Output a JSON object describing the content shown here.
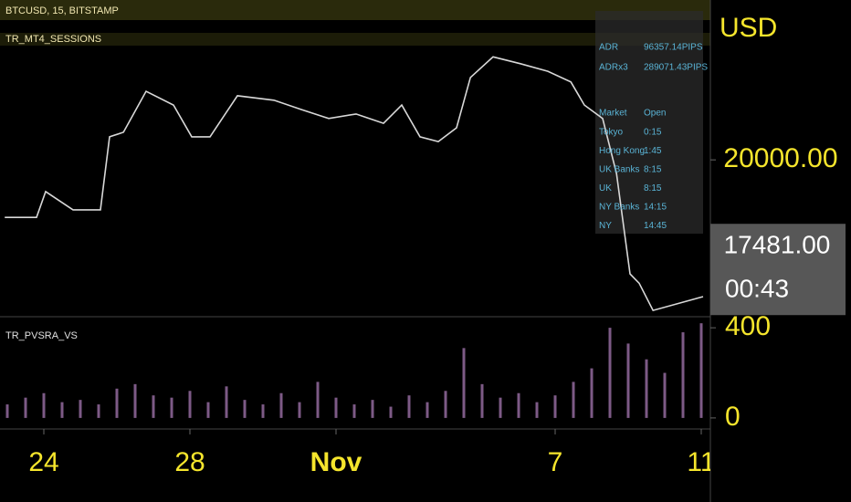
{
  "chart_data": [
    {
      "type": "line",
      "title": "BTCUSD, 15, BITSTAMP",
      "subtitle": "TR_MT4_SESSIONS",
      "y_axis_label": "USD",
      "x": [
        295.93,
        296.8,
        297.05,
        297.8,
        298.55,
        298.8,
        299.18,
        299.8,
        300.55,
        301.05,
        301.55,
        302.3,
        303.3,
        304.05,
        304.8,
        305.55,
        306.3,
        306.8,
        307.3,
        307.8,
        308.3,
        308.68,
        309.3,
        310.05,
        310.8,
        311.43,
        311.8,
        312.3,
        312.68,
        313.05,
        313.3,
        313.68,
        315.05
      ],
      "series": [
        {
          "name": "BTCUSD",
          "color": "#d8d8d8",
          "values": [
            18330,
            18330,
            19080,
            18550,
            18550,
            20670,
            20800,
            21990,
            21590,
            20670,
            20670,
            21860,
            21730,
            21460,
            21200,
            21330,
            21060,
            21590,
            20670,
            20530,
            20930,
            22390,
            22990,
            22790,
            22570,
            22260,
            21590,
            21200,
            19600,
            16690,
            16420,
            15630,
            16030
          ]
        }
      ],
      "xlim": [
        295.8,
        315.25
      ],
      "xticks": [
        {
          "value": 297,
          "label": "24"
        },
        {
          "value": 301,
          "label": "28"
        },
        {
          "value": 305,
          "label": "Nov"
        },
        {
          "value": 311,
          "label": "7"
        },
        {
          "value": 315,
          "label": "11"
        }
      ],
      "ylim": [
        15500,
        24640
      ],
      "yticks": [
        {
          "value": 20000,
          "label": "20000.00"
        }
      ],
      "last_price": 17481,
      "last_price_label": "17481.00",
      "countdown": "00:43",
      "info_table": {
        "rows": [
          [
            "ADR",
            "96357.14PIPS"
          ],
          [
            "ADRx3",
            "289071.43PIPS"
          ]
        ],
        "header": [
          "Market",
          "Open"
        ],
        "sessions": [
          [
            "Tokyo",
            "0:15"
          ],
          [
            "Hong Kong",
            "1:45"
          ],
          [
            "UK Banks",
            "8:15"
          ],
          [
            "UK",
            "8:15"
          ],
          [
            "NY Banks",
            "14:15"
          ],
          [
            "NY",
            "14:45"
          ]
        ]
      }
    },
    {
      "type": "bar",
      "title": "TR_PVSRA_VS",
      "color": "#7d5a86",
      "x": [
        296,
        296.5,
        297,
        297.5,
        298,
        298.5,
        299,
        299.5,
        300,
        300.5,
        301,
        301.5,
        302,
        302.5,
        303,
        303.5,
        304,
        304.5,
        305,
        305.5,
        306,
        306.5,
        307,
        307.5,
        308,
        308.5,
        309,
        309.5,
        310,
        310.5,
        311,
        311.5,
        312,
        312.5,
        313,
        313.5,
        314,
        314.5,
        315
      ],
      "values": [
        60,
        90,
        110,
        70,
        80,
        60,
        130,
        150,
        100,
        90,
        120,
        70,
        140,
        80,
        60,
        110,
        70,
        160,
        90,
        60,
        80,
        50,
        100,
        70,
        120,
        310,
        150,
        90,
        110,
        70,
        100,
        160,
        220,
        400,
        330,
        260,
        200,
        380,
        420
      ],
      "xlim": [
        295.8,
        315.25
      ],
      "ylim": [
        -49,
        445
      ],
      "yticks": [
        0,
        400
      ]
    }
  ]
}
